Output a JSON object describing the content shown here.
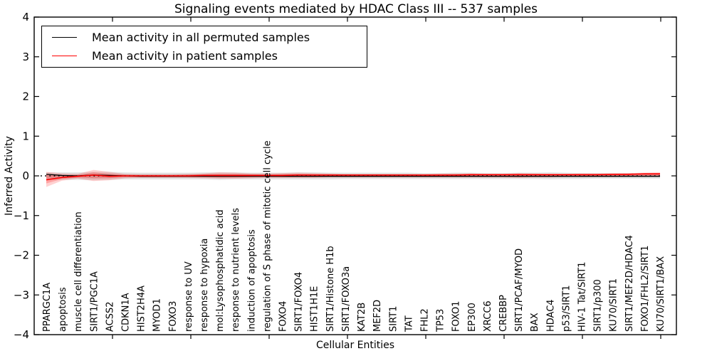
{
  "figure": {
    "background": "#ffffff"
  },
  "legend": {
    "position": "upper left",
    "entries": [
      {
        "label": "Mean activity in all permuted samples",
        "color": "#000000"
      },
      {
        "label": "Mean activity in patient samples",
        "color": "#ff0000"
      }
    ]
  },
  "chart_data": {
    "type": "line",
    "title": "Signaling events mediated by HDAC Class III -- 537 samples",
    "xlabel": "Cellular Entities",
    "ylabel": "Inferred Activity",
    "ylim": [
      -4,
      4
    ],
    "yticks": [
      4,
      3,
      2,
      1,
      0,
      -1,
      -2,
      -3,
      -4
    ],
    "xlim": [
      0,
      41
    ],
    "xtick_marks": [
      5,
      10,
      15,
      20,
      25,
      30,
      35,
      40
    ],
    "grid": false,
    "legend_position": "upper left",
    "categories": [
      "PPARGC1A",
      "apoptosis",
      "muscle cell differentiation",
      "SIRT1/PGC1A",
      "ACSS2",
      "CDKN1A",
      "HIST2H4A",
      "MYOD1",
      "FOXO3",
      "response to UV",
      "response to hypoxia",
      "mol:Lysophosphatidic acid",
      "response to nutrient levels",
      "induction of apoptosis",
      "regulation of S phase of mitotic cell cycle",
      "FOXO4",
      "SIRT1/FOXO4",
      "HIST1H1E",
      "SIRT1/Histone H1b",
      "SIRT1/FOXO3a",
      "KAT2B",
      "MEF2D",
      "SIRT1",
      "TAT",
      "FHL2",
      "TP53",
      "FOXO1",
      "EP300",
      "XRCC6",
      "CREBBP",
      "SIRT1/PCAF/MYOD",
      "BAX",
      "HDAC4",
      "p53/SIRT1",
      "HIV-1 Tat/SIRT1",
      "SIRT1/p300",
      "KU70/SIRT1",
      "SIRT1/MEF2D/HDAC4",
      "FOXO1/FHL2/SIRT1",
      "KU70/SIRT1/BAX"
    ],
    "series": [
      {
        "name": "Mean activity in all permuted samples",
        "color": "#000000",
        "stroke_width": 1.3,
        "values": [
          0.04,
          0.01,
          0.0,
          0.02,
          0.01,
          0.0,
          -0.01,
          -0.01,
          -0.01,
          -0.01,
          -0.01,
          -0.01,
          -0.01,
          -0.01,
          -0.01,
          -0.01,
          -0.01,
          -0.01,
          -0.01,
          -0.01,
          -0.01,
          -0.01,
          -0.01,
          -0.01,
          -0.01,
          -0.01,
          -0.01,
          -0.01,
          -0.01,
          -0.01,
          -0.01,
          -0.01,
          -0.01,
          -0.01,
          -0.01,
          -0.01,
          -0.01,
          -0.01,
          -0.01,
          -0.01
        ]
      },
      {
        "name": "Mean activity in patient samples",
        "color": "#ff0000",
        "stroke_width": 1.6,
        "values": [
          -0.1,
          -0.04,
          -0.01,
          0.02,
          -0.01,
          0.0,
          0.0,
          0.0,
          0.0,
          0.0,
          0.01,
          0.01,
          0.01,
          0.01,
          0.01,
          0.01,
          0.02,
          0.02,
          0.02,
          0.02,
          0.02,
          0.02,
          0.02,
          0.02,
          0.02,
          0.02,
          0.02,
          0.03,
          0.03,
          0.03,
          0.03,
          0.03,
          0.03,
          0.03,
          0.03,
          0.03,
          0.04,
          0.04,
          0.05,
          0.05
        ]
      }
    ],
    "bands": [
      {
        "name": "permuted-range-outer",
        "color": "#000000",
        "opacity": 0.1,
        "upper": [
          0.09,
          0.09,
          0.09,
          0.1,
          0.1,
          0.09,
          0.08,
          0.08,
          0.08,
          0.08,
          0.09,
          0.09,
          0.09,
          0.08,
          0.08,
          0.08,
          0.09,
          0.09,
          0.08,
          0.08,
          0.08,
          0.08,
          0.08,
          0.08,
          0.07,
          0.07,
          0.08,
          0.08,
          0.07,
          0.07,
          0.08,
          0.08,
          0.09,
          0.08,
          0.07,
          0.07,
          0.07,
          0.07,
          0.07,
          0.07
        ],
        "lower": [
          -0.1,
          -0.1,
          -0.1,
          -0.11,
          -0.1,
          -0.09,
          -0.09,
          -0.09,
          -0.09,
          -0.09,
          -0.09,
          -0.1,
          -0.09,
          -0.09,
          -0.09,
          -0.09,
          -0.09,
          -0.09,
          -0.09,
          -0.08,
          -0.08,
          -0.08,
          -0.08,
          -0.08,
          -0.08,
          -0.08,
          -0.08,
          -0.08,
          -0.08,
          -0.08,
          -0.08,
          -0.08,
          -0.09,
          -0.08,
          -0.08,
          -0.07,
          -0.07,
          -0.07,
          -0.07,
          -0.07
        ]
      },
      {
        "name": "permuted-range-inner",
        "color": "#000000",
        "opacity": 0.08,
        "upper": [
          0.05,
          0.05,
          0.05,
          0.06,
          0.06,
          0.05,
          0.05,
          0.05,
          0.05,
          0.05,
          0.05,
          0.05,
          0.05,
          0.05,
          0.05,
          0.05,
          0.05,
          0.05,
          0.05,
          0.05,
          0.05,
          0.05,
          0.05,
          0.05,
          0.04,
          0.04,
          0.05,
          0.05,
          0.04,
          0.04,
          0.05,
          0.05,
          0.05,
          0.05,
          0.04,
          0.04,
          0.04,
          0.04,
          0.04,
          0.04
        ],
        "lower": [
          -0.06,
          -0.06,
          -0.06,
          -0.07,
          -0.06,
          -0.05,
          -0.05,
          -0.05,
          -0.05,
          -0.05,
          -0.05,
          -0.06,
          -0.05,
          -0.05,
          -0.05,
          -0.05,
          -0.05,
          -0.05,
          -0.05,
          -0.05,
          -0.05,
          -0.05,
          -0.05,
          -0.05,
          -0.05,
          -0.05,
          -0.05,
          -0.05,
          -0.05,
          -0.05,
          -0.05,
          -0.05,
          -0.05,
          -0.05,
          -0.05,
          -0.04,
          -0.04,
          -0.04,
          -0.04,
          -0.04
        ]
      },
      {
        "name": "patient-range-outer",
        "color": "#ff0000",
        "opacity": 0.18,
        "upper": [
          0.1,
          0.06,
          0.05,
          0.15,
          0.1,
          0.05,
          0.04,
          0.04,
          0.04,
          0.05,
          0.06,
          0.09,
          0.08,
          0.06,
          0.06,
          0.07,
          0.08,
          0.07,
          0.06,
          0.05,
          0.05,
          0.05,
          0.05,
          0.05,
          0.05,
          0.06,
          0.06,
          0.06,
          0.05,
          0.05,
          0.07,
          0.06,
          0.05,
          0.05,
          0.06,
          0.06,
          0.06,
          0.07,
          0.08,
          0.09
        ],
        "lower": [
          -0.28,
          -0.12,
          -0.07,
          -0.13,
          -0.11,
          -0.06,
          -0.05,
          -0.05,
          -0.05,
          -0.05,
          -0.06,
          -0.07,
          -0.07,
          -0.06,
          -0.05,
          -0.05,
          -0.05,
          -0.05,
          -0.04,
          -0.04,
          -0.04,
          -0.04,
          -0.04,
          -0.04,
          -0.04,
          -0.04,
          -0.04,
          -0.04,
          -0.04,
          -0.04,
          -0.05,
          -0.04,
          -0.04,
          -0.03,
          -0.03,
          -0.03,
          -0.03,
          -0.02,
          -0.02,
          -0.01
        ]
      },
      {
        "name": "patient-range-inner",
        "color": "#ff0000",
        "opacity": 0.22,
        "upper": [
          0.04,
          0.01,
          0.02,
          0.09,
          0.05,
          0.03,
          0.02,
          0.02,
          0.02,
          0.03,
          0.04,
          0.05,
          0.05,
          0.04,
          0.03,
          0.04,
          0.05,
          0.04,
          0.04,
          0.03,
          0.03,
          0.03,
          0.03,
          0.03,
          0.03,
          0.04,
          0.04,
          0.04,
          0.04,
          0.04,
          0.05,
          0.04,
          0.04,
          0.04,
          0.04,
          0.04,
          0.05,
          0.05,
          0.06,
          0.07
        ],
        "lower": [
          -0.19,
          -0.08,
          -0.04,
          -0.06,
          -0.06,
          -0.03,
          -0.03,
          -0.03,
          -0.03,
          -0.03,
          -0.03,
          -0.04,
          -0.04,
          -0.03,
          -0.02,
          -0.03,
          -0.03,
          -0.03,
          -0.02,
          -0.02,
          -0.02,
          -0.02,
          -0.02,
          -0.02,
          -0.02,
          -0.02,
          -0.02,
          -0.02,
          -0.02,
          -0.02,
          -0.03,
          -0.02,
          -0.02,
          -0.01,
          -0.01,
          -0.01,
          -0.01,
          0.0,
          0.0,
          0.01
        ]
      }
    ],
    "zero_line": {
      "value": 0,
      "style": "dotted",
      "color": "#000000"
    }
  }
}
